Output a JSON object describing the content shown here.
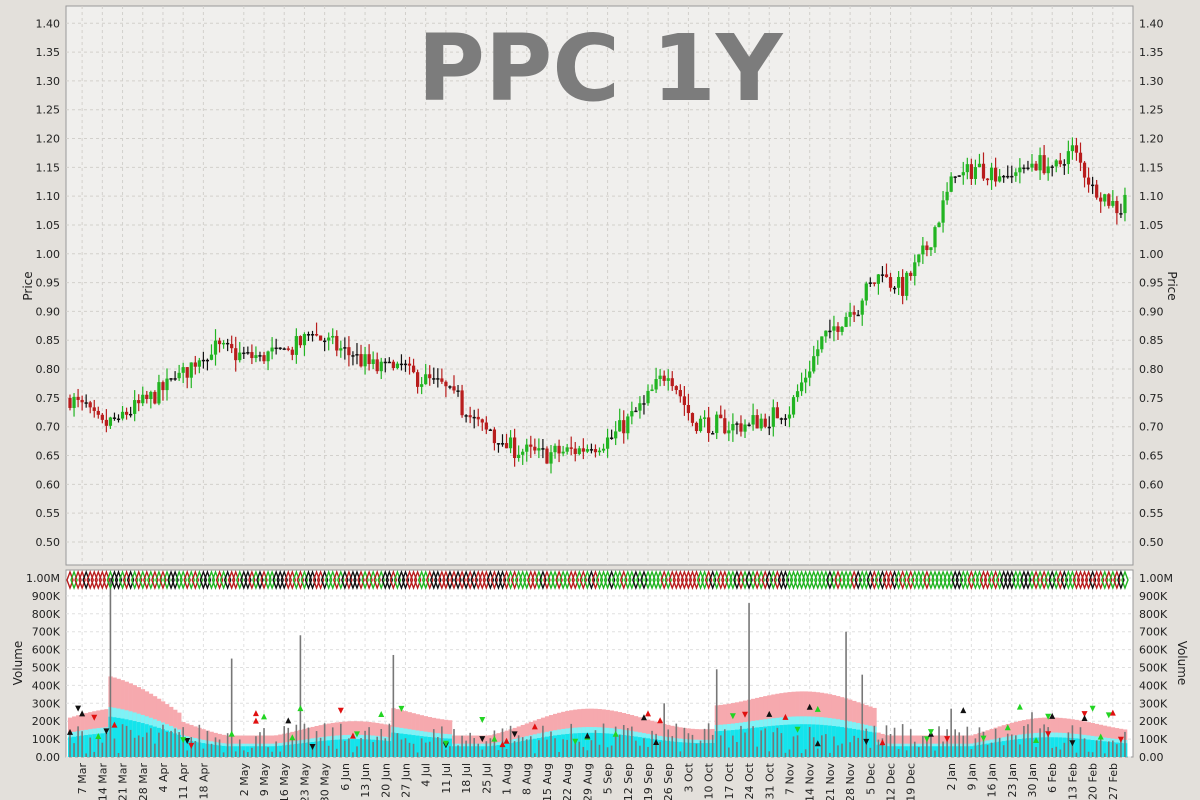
{
  "chart_data": [
    {
      "type": "candlestick",
      "title": "PPC 1Y",
      "ylabel": "Price",
      "ylim": [
        0.46,
        1.43
      ],
      "yticks": [
        "0.50",
        "0.55",
        "0.60",
        "0.65",
        "0.70",
        "0.75",
        "0.80",
        "0.85",
        "0.90",
        "0.95",
        "1.00",
        "1.05",
        "1.10",
        "1.15",
        "1.20",
        "1.25",
        "1.30",
        "1.35",
        "1.40"
      ],
      "grid": true,
      "colors": {
        "up": "#22b422",
        "down": "#b81d1d",
        "neutral": "#111111"
      },
      "price_path": [
        [
          0,
          0.75
        ],
        [
          8,
          0.7
        ],
        [
          18,
          0.74
        ],
        [
          28,
          0.79
        ],
        [
          34,
          0.84
        ],
        [
          44,
          0.82
        ],
        [
          54,
          0.83
        ],
        [
          60,
          0.86
        ],
        [
          68,
          0.83
        ],
        [
          76,
          0.8
        ],
        [
          84,
          0.79
        ],
        [
          92,
          0.77
        ],
        [
          100,
          0.71
        ],
        [
          106,
          0.67
        ],
        [
          116,
          0.65
        ],
        [
          126,
          0.66
        ],
        [
          134,
          0.68
        ],
        [
          142,
          0.74
        ],
        [
          148,
          0.8
        ],
        [
          154,
          0.71
        ],
        [
          164,
          0.7
        ],
        [
          170,
          0.71
        ],
        [
          178,
          0.73
        ],
        [
          186,
          0.85
        ],
        [
          194,
          0.91
        ],
        [
          200,
          0.96
        ],
        [
          206,
          0.94
        ],
        [
          212,
          1.01
        ],
        [
          218,
          1.12
        ],
        [
          224,
          1.15
        ],
        [
          230,
          1.14
        ],
        [
          238,
          1.16
        ],
        [
          244,
          1.15
        ],
        [
          248,
          1.18
        ],
        [
          252,
          1.13
        ],
        [
          256,
          1.1
        ],
        [
          259,
          1.08
        ],
        [
          262,
          1.12
        ]
      ],
      "n_days": 262
    },
    {
      "type": "bar",
      "ylabel": "Volume",
      "ylim": [
        0,
        1000000
      ],
      "yticks": [
        "0.00",
        "100K",
        "200K",
        "300K",
        "400K",
        "500K",
        "600K",
        "700K",
        "800K",
        "900K",
        "1.00M"
      ],
      "grid": true,
      "band_colors": {
        "outer": "#f6a9ae",
        "middle": "#7ef2f6",
        "inner": "#14e4ec",
        "bar": "#777777"
      },
      "volume_spikes": [
        [
          10,
          1000000
        ],
        [
          40,
          550000
        ],
        [
          57,
          680000
        ],
        [
          80,
          570000
        ],
        [
          147,
          300000
        ],
        [
          160,
          490000
        ],
        [
          168,
          860000
        ],
        [
          192,
          700000
        ],
        [
          196,
          460000
        ],
        [
          218,
          270000
        ],
        [
          238,
          250000
        ]
      ]
    }
  ],
  "x_axis": {
    "labels": [
      "7 Mar",
      "14 Mar",
      "21 Mar",
      "28 Mar",
      "4 Apr",
      "11 Apr",
      "18 Apr",
      "2 May",
      "9 May",
      "16 May",
      "23 May",
      "30 May",
      "6 Jun",
      "13 Jun",
      "20 Jun",
      "27 Jun",
      "4 Jul",
      "11 Jul",
      "18 Jul",
      "25 Jul",
      "1 Aug",
      "8 Aug",
      "15 Aug",
      "22 Aug",
      "29 Aug",
      "5 Sep",
      "12 Sep",
      "19 Sep",
      "26 Sep",
      "3 Oct",
      "10 Oct",
      "17 Oct",
      "24 Oct",
      "31 Oct",
      "7 Nov",
      "14 Nov",
      "21 Nov",
      "28 Nov",
      "5 Dec",
      "12 Dec",
      "19 Dec",
      "2 Jan",
      "9 Jan",
      "16 Jan",
      "23 Jan",
      "30 Jan",
      "6 Feb",
      "13 Feb",
      "20 Feb",
      "27 Feb"
    ],
    "label_days": [
      3,
      8,
      13,
      18,
      23,
      28,
      33,
      43,
      48,
      53,
      58,
      63,
      68,
      73,
      78,
      83,
      88,
      93,
      98,
      103,
      108,
      113,
      118,
      123,
      128,
      133,
      138,
      143,
      148,
      153,
      158,
      163,
      168,
      173,
      178,
      183,
      188,
      193,
      198,
      203,
      208,
      218,
      223,
      228,
      233,
      238,
      243,
      248,
      253,
      258
    ]
  }
}
